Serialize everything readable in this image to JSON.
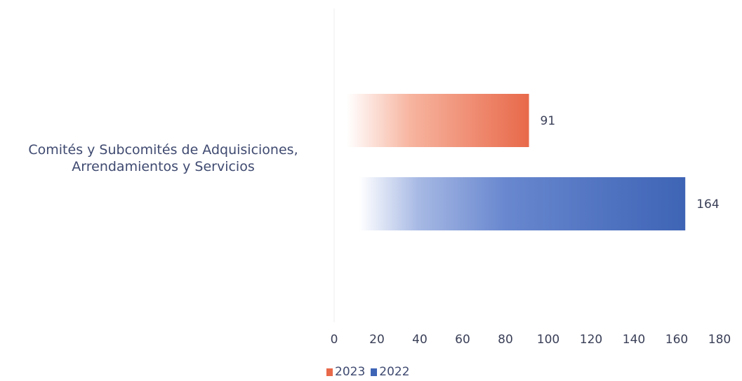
{
  "chart_data": {
    "type": "bar",
    "orientation": "horizontal",
    "categories": [
      "Comités y Subcomités de Adquisiciones, Arrendamientos y Servicios"
    ],
    "category_label_lines": [
      "Comités y Subcomités de Adquisiciones,",
      "Arrendamientos y Servicios"
    ],
    "series": [
      {
        "name": "2023",
        "values": [
          91
        ],
        "color": "#e8694a"
      },
      {
        "name": "2022",
        "values": [
          164
        ],
        "color": "#3e64b5"
      }
    ],
    "xlim": [
      0,
      180
    ],
    "x_ticks": [
      "0",
      "20",
      "40",
      "60",
      "80",
      "100",
      "120",
      "140",
      "160",
      "180"
    ],
    "data_labels": [
      "91",
      "164"
    ],
    "legend_position": "bottom",
    "grid": false
  }
}
